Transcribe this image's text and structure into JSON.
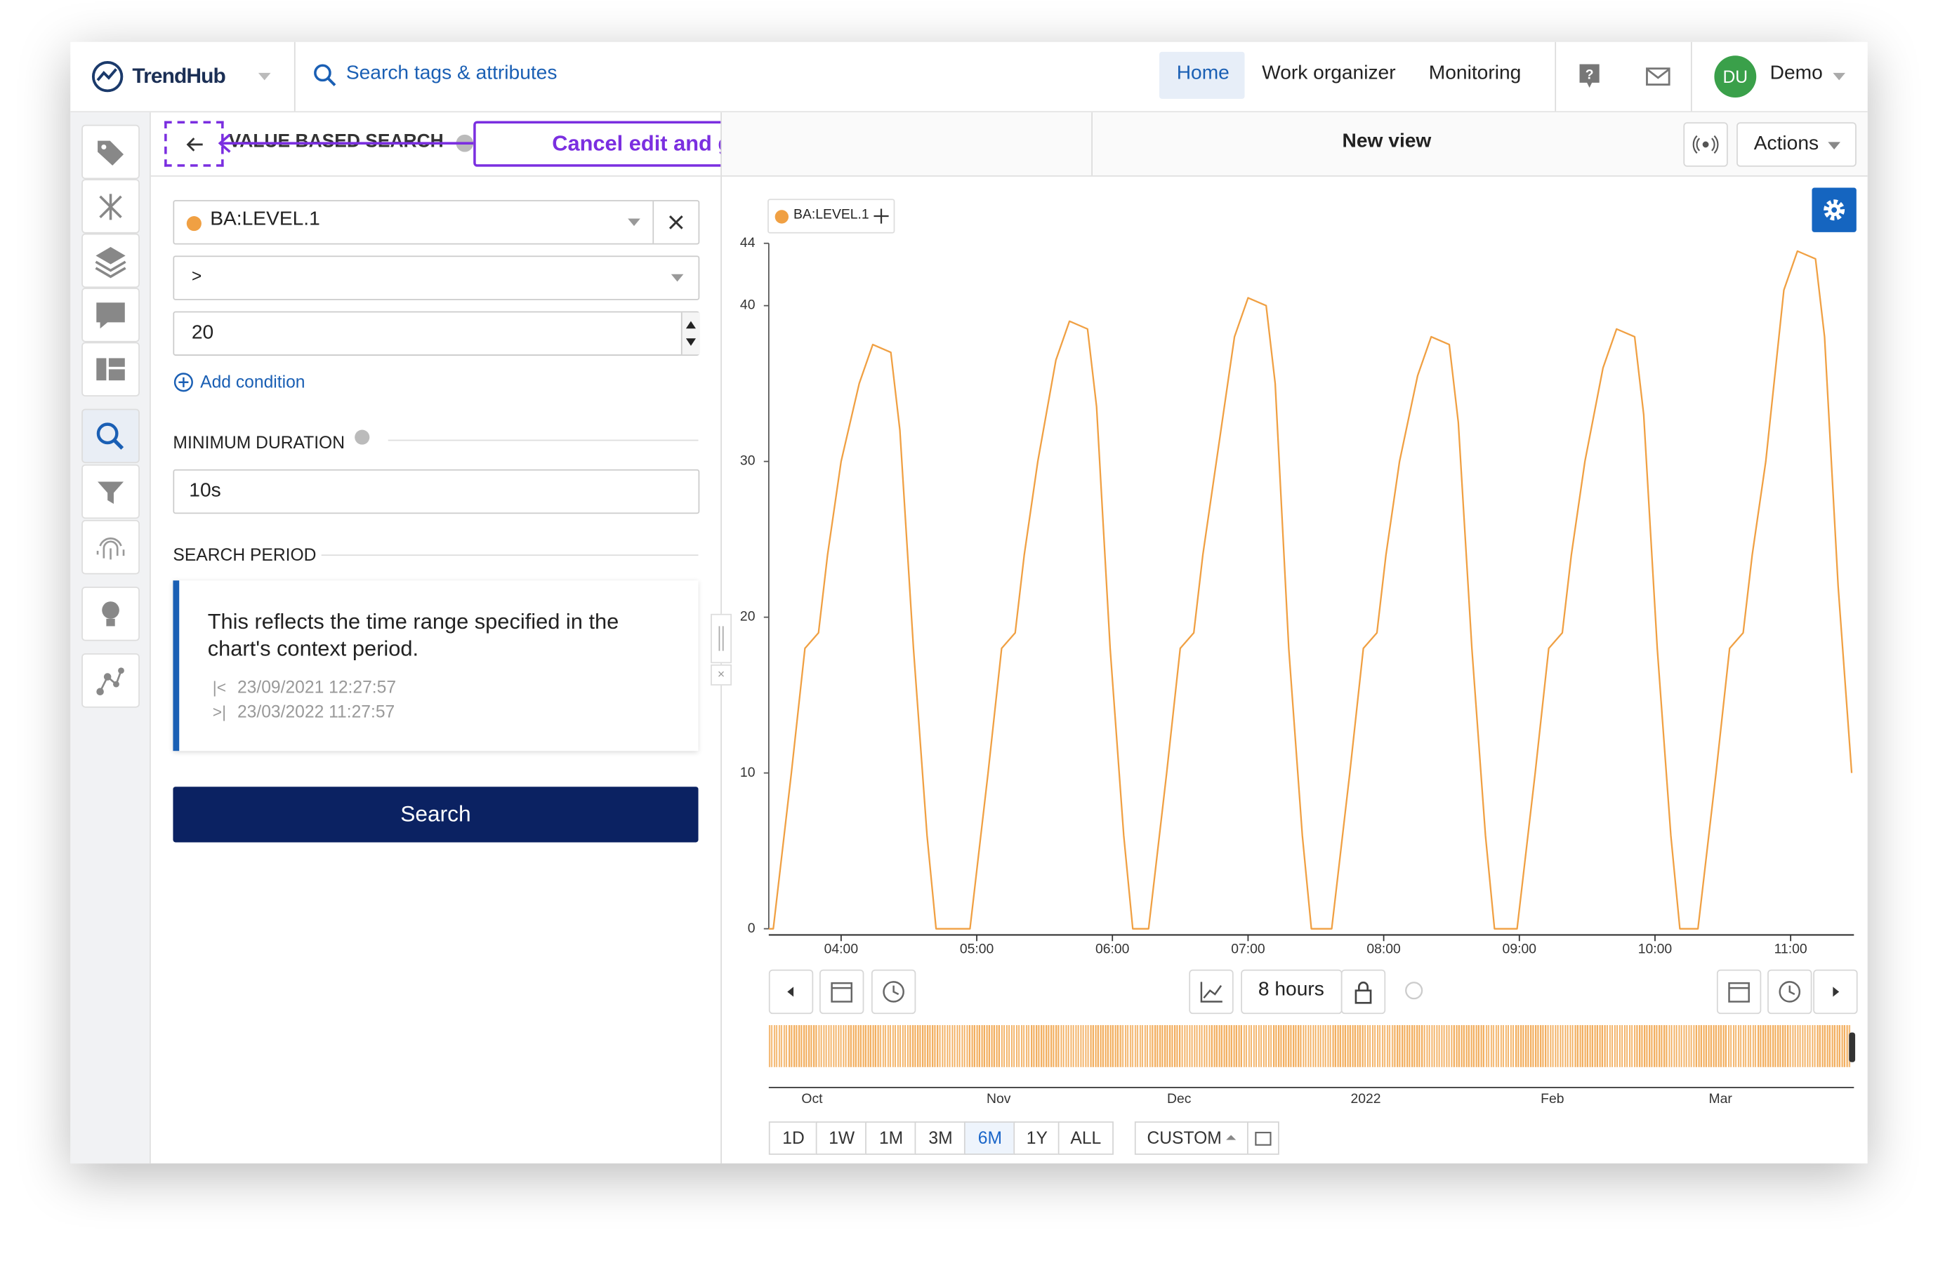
{
  "app": {
    "logo": "TrendHub",
    "search_placeholder": "Search tags & attributes",
    "nav": [
      "Home",
      "Work organizer",
      "Monitoring"
    ],
    "user_initials": "DU",
    "user_name": "Demo"
  },
  "search_panel": {
    "title": "VALUE BASED SEARCH",
    "annotation": "Cancel edit and go back to search summary",
    "tag": "BA:LEVEL.1",
    "operator": ">",
    "threshold": 20,
    "add_condition": "Add condition",
    "min_duration_label": "MINIMUM DURATION",
    "min_duration": "10s",
    "search_period_label": "SEARCH PERIOD",
    "period_note": "This reflects the time range specified in the chart's context period.",
    "period_start": "23/09/2021 12:27:57",
    "period_end": "23/03/2022 11:27:57",
    "search_button": "Search"
  },
  "view": {
    "title": "New view",
    "actions": "Actions",
    "zoom": "8 hours",
    "navigator_labels": [
      "Oct",
      "Nov",
      "Dec",
      "2022",
      "Feb",
      "Mar"
    ],
    "ranges": [
      "1D",
      "1W",
      "1M",
      "3M",
      "6M",
      "1Y",
      "ALL"
    ],
    "active_range": "6M",
    "custom": "CUSTOM"
  },
  "chart_data": {
    "type": "line",
    "x": [
      "03:28",
      "03:30",
      "03:38",
      "03:44",
      "03:50",
      "03:54",
      "04:00",
      "04:08",
      "04:14",
      "04:22",
      "04:26",
      "04:32",
      "04:38",
      "04:42",
      "04:57",
      "05:05",
      "05:11",
      "05:17",
      "05:21",
      "05:27",
      "05:35",
      "05:41",
      "05:49",
      "05:53",
      "05:59",
      "06:05",
      "06:09",
      "06:16",
      "06:24",
      "06:30",
      "06:36",
      "06:40",
      "06:46",
      "06:54",
      "07:00",
      "07:08",
      "07:12",
      "07:18",
      "07:24",
      "07:28",
      "07:37",
      "07:45",
      "07:51",
      "07:57",
      "08:01",
      "08:07",
      "08:15",
      "08:21",
      "08:29",
      "08:33",
      "08:39",
      "08:45",
      "08:49",
      "08:59",
      "09:07",
      "09:13",
      "09:19",
      "09:23",
      "09:29",
      "09:37",
      "09:43",
      "09:51",
      "09:55",
      "10:01",
      "10:07",
      "10:11",
      "10:19",
      "10:27",
      "10:33",
      "10:39",
      "10:43",
      "10:49",
      "10:57",
      "11:03",
      "11:11",
      "11:15",
      "11:21",
      "11:27"
    ],
    "series": [
      {
        "name": "BA:LEVEL.1",
        "color": "#f0a043",
        "values": [
          0,
          0,
          10,
          18,
          19,
          24,
          30,
          35,
          37.5,
          37,
          32,
          18,
          6,
          0,
          0,
          10,
          18,
          19,
          24,
          30,
          36.5,
          39,
          38.5,
          33.5,
          18,
          6,
          0,
          0,
          10,
          18,
          19,
          24,
          30,
          38,
          40.5,
          40,
          35,
          18,
          6,
          0,
          0,
          10,
          18,
          19,
          24,
          30,
          35.5,
          38,
          37.5,
          32.5,
          18,
          6,
          0,
          0,
          10,
          18,
          19,
          24,
          30,
          36,
          38.5,
          38,
          33,
          18,
          6,
          0,
          0,
          10,
          18,
          19,
          24,
          30,
          41,
          43.5,
          43,
          38,
          22,
          10
        ]
      }
    ],
    "xlim": [
      "03:28",
      "11:28"
    ],
    "xticks": [
      "04:00",
      "05:00",
      "06:00",
      "07:00",
      "08:00",
      "09:00",
      "10:00",
      "11:00"
    ],
    "ylim": [
      0,
      44
    ],
    "yticks": [
      0,
      10,
      20,
      30,
      40,
      44
    ]
  }
}
